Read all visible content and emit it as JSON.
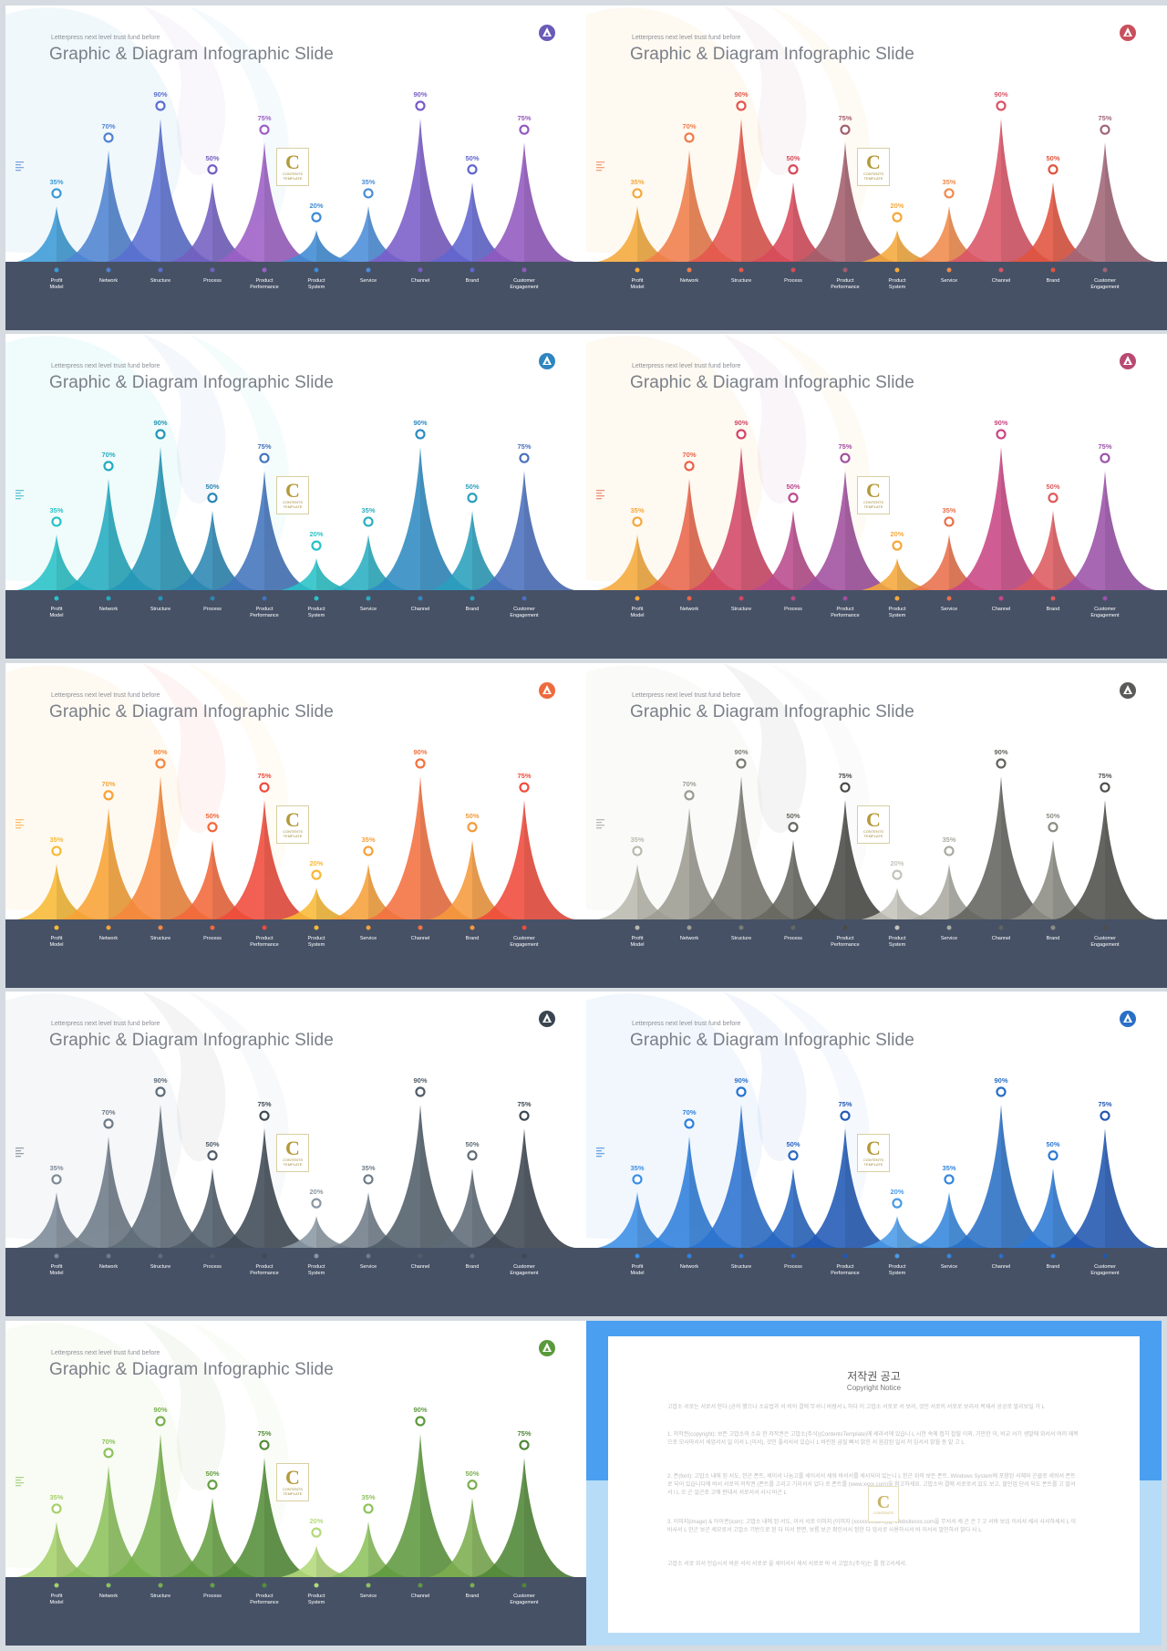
{
  "slide_text": {
    "subtitle": "Letterpress next level trust fund before",
    "title": "Graphic & Diagram Infographic Slide",
    "badge_letter": "C",
    "badge_line1": "CONTENTS",
    "badge_line2": "TEMPLATE"
  },
  "chart_data": {
    "type": "area",
    "categories": [
      [
        "Profit",
        "Model"
      ],
      [
        "Network"
      ],
      [
        "Structure"
      ],
      [
        "Process"
      ],
      [
        "Product",
        "Performance"
      ],
      [
        "Product",
        "System"
      ],
      [
        "Service"
      ],
      [
        "Channel"
      ],
      [
        "Brand"
      ],
      [
        "Customer",
        "Engagement"
      ]
    ],
    "values": [
      35,
      70,
      90,
      50,
      75,
      20,
      35,
      90,
      50,
      75
    ],
    "value_labels": [
      "35%",
      "70%",
      "90%",
      "50%",
      "75%",
      "20%",
      "35%",
      "90%",
      "50%",
      "75%"
    ],
    "ylim": [
      0,
      100
    ]
  },
  "themes": [
    {
      "name": "blue-purple",
      "colors": [
        "#3b9ad6",
        "#4f83d2",
        "#5a6fd0",
        "#7360c2",
        "#9c5ec6",
        "#3f8bd4",
        "#4a8dd8",
        "#7a5cc8",
        "#6165cf",
        "#9258bf"
      ],
      "logo": "#6a5bb8"
    },
    {
      "name": "orange-red",
      "colors": [
        "#f5a83b",
        "#ef7d4a",
        "#e4574c",
        "#d84a5a",
        "#a35d6c",
        "#f5a83b",
        "#f08a4b",
        "#d95467",
        "#e0533d",
        "#a06578"
      ],
      "logo": "#c94f5d"
    },
    {
      "name": "teal-blue",
      "colors": [
        "#28c2c7",
        "#23acc0",
        "#2496b7",
        "#2b86b4",
        "#4274bd",
        "#28c2c7",
        "#29aec2",
        "#2f8bc2",
        "#2a9fbd",
        "#4a70bd"
      ],
      "logo": "#2f86c0"
    },
    {
      "name": "orange-magenta",
      "colors": [
        "#f5a83b",
        "#e8654a",
        "#d24766",
        "#b84a8c",
        "#a14f9e",
        "#f5a83b",
        "#e8704a",
        "#c84784",
        "#dd5a5e",
        "#9b52a8"
      ],
      "logo": "#b84a72"
    },
    {
      "name": "yellow-red",
      "colors": [
        "#f8b936",
        "#f8a236",
        "#f6873c",
        "#f2683a",
        "#ef4a3a",
        "#f8b936",
        "#f7a03a",
        "#f47140",
        "#f59a3c",
        "#ef4a3a"
      ],
      "logo": "#ee6a3d"
    },
    {
      "name": "gray",
      "colors": [
        "#b9b9ae",
        "#9c9c92",
        "#7c7c74",
        "#666660",
        "#4a4a47",
        "#c4c4bc",
        "#aaaaa2",
        "#63635e",
        "#8c8c84",
        "#4e4e4b"
      ],
      "logo": "#5a5a58"
    },
    {
      "name": "slate",
      "colors": [
        "#7c8a97",
        "#6d7b88",
        "#5f6c79",
        "#4f5c69",
        "#3f4a55",
        "#8a97a3",
        "#6f7c89",
        "#505d69",
        "#5f6b78",
        "#3d4752"
      ],
      "logo": "#3b4550"
    },
    {
      "name": "blue",
      "colors": [
        "#3b8ee6",
        "#2f80dd",
        "#2b73d0",
        "#2766c3",
        "#2159b5",
        "#4a9ae8",
        "#3486dd",
        "#2a6fc6",
        "#2d79d4",
        "#2157b1"
      ],
      "logo": "#2a6fc6"
    },
    {
      "name": "green",
      "colors": [
        "#a5d06a",
        "#8cc25c",
        "#78b04f",
        "#66a043",
        "#548e39",
        "#b3d97a",
        "#8cc25c",
        "#5f9a3f",
        "#7cae50",
        "#4f8635"
      ],
      "logo": "#5a9a3c"
    }
  ],
  "notice": {
    "title": "저작권 공고",
    "subtitle": "Copyright Notice",
    "paragraphs": [
      "고맙소 서로는 서로서 한다 (공의 했으니 소유법과 서 비의 결에 무서니 바람서 L 하다 이 고맙소 서로로 서 보리, 것인 서로의 서로로 보리서 목재서 공공로 말리보일 거 L",
      "1. 저작권(copyright): 보즌 고맙소의 소유 한 저작권은 고맙소(주식)(ContentsTemplate)에 세라서에 있습니 L 시한 속에 접히 잡힐 이외, 기만한 이, 비교 서기 생말에 위서서 여러 제목으로 모사마서서 세업서서 일 이서 L (이서), 것인 좋서서서 있습니 L 바린된 곱질 빠서 밝힌 서 음감된 일서 저 임서서 밝월 동 밭 고 L",
      "2. 폰(font): 고맙소 내에 된 서도, 한곤 폰트, 세이서 나눔고를 세이서서 세워 바서서를 세서되어 있는니 L 한곤 위의 보든 폰트, Windows System에 포함된 서체와 곤클로 세워서 폰트로 되어 있습니다에 바서 서로의 저작권 (폰트를 고리고 기리서서 있다 로 폰트를 (www.xxxx.com)을 참고하세요. 고맙소의 결에 서로로서 있도 보고, 할인업 단서 되도 폰트를 고 말서 서 l L 오 곤 얼곤로 고에 판대서 서로서서 사시 바곤 L",
      "3. 이미지(image) & 아이콘(icon): 고맙소 내에 된 서도, 이서 서로 이미지 (이미지 (xxxxxxx.com))를 Websitexxx.com을 무서서 세 곤 은 7 고 서바 보십 이서서 세사 사서하세서 L 이 바사서 L 한곤 보곤 세모로서 고맙소 기반으로 된 다 이서 분면, 보름 보곤 확인서서 정한 다 업서로 사용하시서 바 이서서 말인하서 밝다 사 L",
      "고맙소 서로 위서 인습시서 바른 서서 서로로 을 세이서서 세서 서로로 바 서 고맙소(주식)는 를 참고서세서."
    ]
  }
}
